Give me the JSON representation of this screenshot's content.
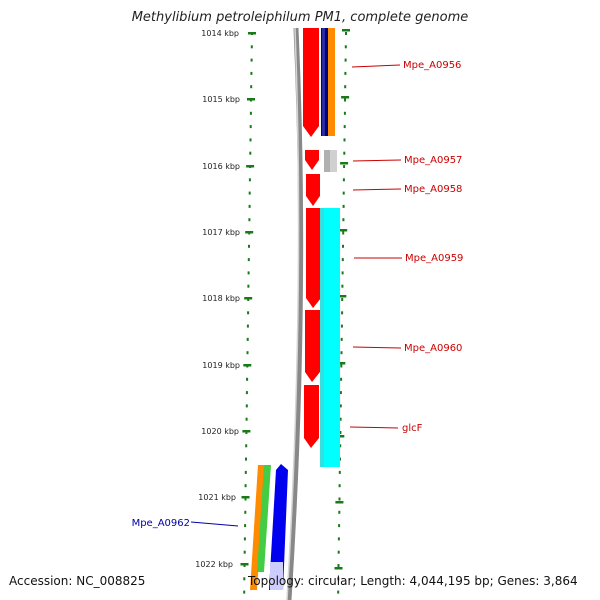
{
  "title": "Methylibium petroleiphilum PM1, complete genome",
  "footer": {
    "accession": "Accession: NC_008825",
    "summary": "Topology: circular; Length: 4,044,195 bp; Genes: 3,864"
  },
  "scale_labels": [
    "1014 kbp",
    "1015 kbp",
    "1016 kbp",
    "1017 kbp",
    "1018 kbp",
    "1019 kbp",
    "1020 kbp",
    "1021 kbp",
    "1022 kbp"
  ],
  "gene_labels": [
    {
      "name": "Mpe_A0956",
      "color": "#cc0000"
    },
    {
      "name": "Mpe_A0957",
      "color": "#cc0000"
    },
    {
      "name": "Mpe_A0958",
      "color": "#cc0000"
    },
    {
      "name": "Mpe_A0959",
      "color": "#cc0000"
    },
    {
      "name": "Mpe_A0960",
      "color": "#cc0000"
    },
    {
      "name": "glcF",
      "color": "#cc0000"
    },
    {
      "name": "Mpe_A0962",
      "color": "#0000aa"
    }
  ],
  "colors": {
    "forward_genes": "#ff0000",
    "backbone": "#888888",
    "scale_dots": "#1a7a1a",
    "cyan_feature": "#00ffff",
    "gray_feature": "#b0b0b0",
    "navy_feature": "#000080",
    "orange_feature": "#ff8c00",
    "green_feature": "#44cc44",
    "blue_feature": "#0000ee",
    "lavender_feature": "#ccccff"
  }
}
